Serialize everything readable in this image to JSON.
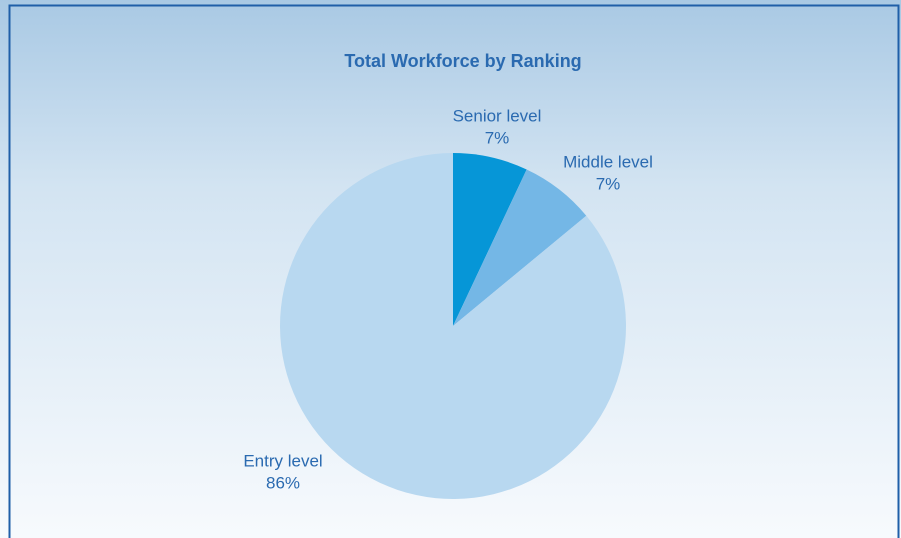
{
  "chart_data": {
    "type": "pie",
    "title": "Total Workforce by Ranking",
    "categories": [
      "Senior level",
      "Middle level",
      "Entry level"
    ],
    "values": [
      7,
      7,
      86
    ],
    "value_labels": [
      "7%",
      "7%",
      "86%"
    ],
    "colors": [
      "#0696d7",
      "#74b7e6",
      "#b8d8f0"
    ]
  }
}
